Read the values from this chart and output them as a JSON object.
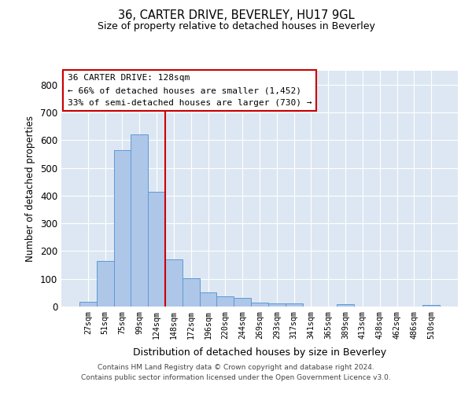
{
  "title": "36, CARTER DRIVE, BEVERLEY, HU17 9GL",
  "subtitle": "Size of property relative to detached houses in Beverley",
  "xlabel": "Distribution of detached houses by size in Beverley",
  "ylabel": "Number of detached properties",
  "categories": [
    "27sqm",
    "51sqm",
    "75sqm",
    "99sqm",
    "124sqm",
    "148sqm",
    "172sqm",
    "196sqm",
    "220sqm",
    "244sqm",
    "269sqm",
    "293sqm",
    "317sqm",
    "341sqm",
    "365sqm",
    "389sqm",
    "413sqm",
    "438sqm",
    "462sqm",
    "486sqm",
    "510sqm"
  ],
  "values": [
    18,
    163,
    563,
    620,
    413,
    170,
    103,
    50,
    38,
    30,
    14,
    12,
    10,
    0,
    0,
    8,
    0,
    0,
    0,
    0,
    7
  ],
  "bar_color": "#aec6e8",
  "bar_edge_color": "#5b9bd5",
  "background_color": "#dde7f3",
  "grid_color": "#ffffff",
  "vline_color": "#cc0000",
  "annotation_text": "36 CARTER DRIVE: 128sqm\n← 66% of detached houses are smaller (1,452)\n33% of semi-detached houses are larger (730) →",
  "annotation_box_color": "#ffffff",
  "annotation_box_edge": "#cc0000",
  "ylim": [
    0,
    850
  ],
  "yticks": [
    0,
    100,
    200,
    300,
    400,
    500,
    600,
    700,
    800
  ],
  "footer_line1": "Contains HM Land Registry data © Crown copyright and database right 2024.",
  "footer_line2": "Contains public sector information licensed under the Open Government Licence v3.0."
}
